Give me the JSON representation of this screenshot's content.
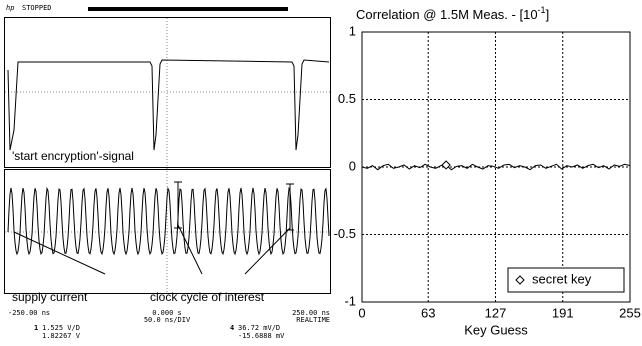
{
  "scope": {
    "brand": "hp",
    "status": "STOPPED",
    "annotations": [
      "'start encryption'-signal",
      "supply current",
      "clock cycle of interest"
    ],
    "time_left": "-250.00 ns",
    "time_center": "0.000 s",
    "time_div": "50.0 ns/DIV",
    "time_right": "250.00 ns",
    "mode": "REALTIME",
    "ch1": {
      "number": "1",
      "scale": "1.525 V/D",
      "offset": "1.82267 V"
    },
    "ch4": {
      "number": "4",
      "scale": "36.72 mV/D",
      "offset": "-15.6888 mV"
    }
  },
  "chart_data": {
    "type": "line",
    "title_parts": [
      "Correlation @ 1.5M Meas. - [10",
      "-1",
      "]"
    ],
    "x_label": "Key Guess",
    "xlim": [
      0,
      255
    ],
    "xticks": [
      0,
      63,
      127,
      191,
      255
    ],
    "ylim": [
      -1,
      1
    ],
    "yticks": [
      1,
      0.5,
      0,
      -0.5,
      -1
    ],
    "grid": true,
    "series": [
      {
        "color": "#000000",
        "x": [
          0,
          5,
          10,
          15,
          20,
          25,
          30,
          35,
          40,
          45,
          50,
          55,
          60,
          65,
          70,
          75,
          80,
          85,
          90,
          95,
          100,
          105,
          110,
          115,
          120,
          125,
          130,
          135,
          140,
          145,
          150,
          155,
          160,
          165,
          170,
          175,
          180,
          185,
          190,
          195,
          200,
          205,
          210,
          215,
          220,
          225,
          230,
          235,
          240,
          245,
          250,
          255
        ],
        "values": [
          0,
          -0.01,
          0.01,
          -0.02,
          0.01,
          0.02,
          -0.01,
          0,
          0.015,
          -0.015,
          0.01,
          -0.005,
          0.02,
          0,
          -0.01,
          0.01,
          0.015,
          -0.02,
          0.005,
          0.01,
          -0.01,
          0.02,
          0,
          -0.015,
          0.01,
          0.005,
          -0.01,
          0.015,
          0.02,
          -0.005,
          0.01,
          0,
          -0.02,
          0.01,
          0.015,
          -0.01,
          0.005,
          0.02,
          -0.015,
          0.01,
          0,
          0.015,
          -0.01,
          0.01,
          0.02,
          -0.005,
          0.01,
          -0.015,
          0.015,
          0.005,
          0.02,
          0.01
        ]
      }
    ],
    "marker": {
      "name": "secret key",
      "x": 80,
      "y": 0.015
    },
    "legend": "lower right"
  }
}
